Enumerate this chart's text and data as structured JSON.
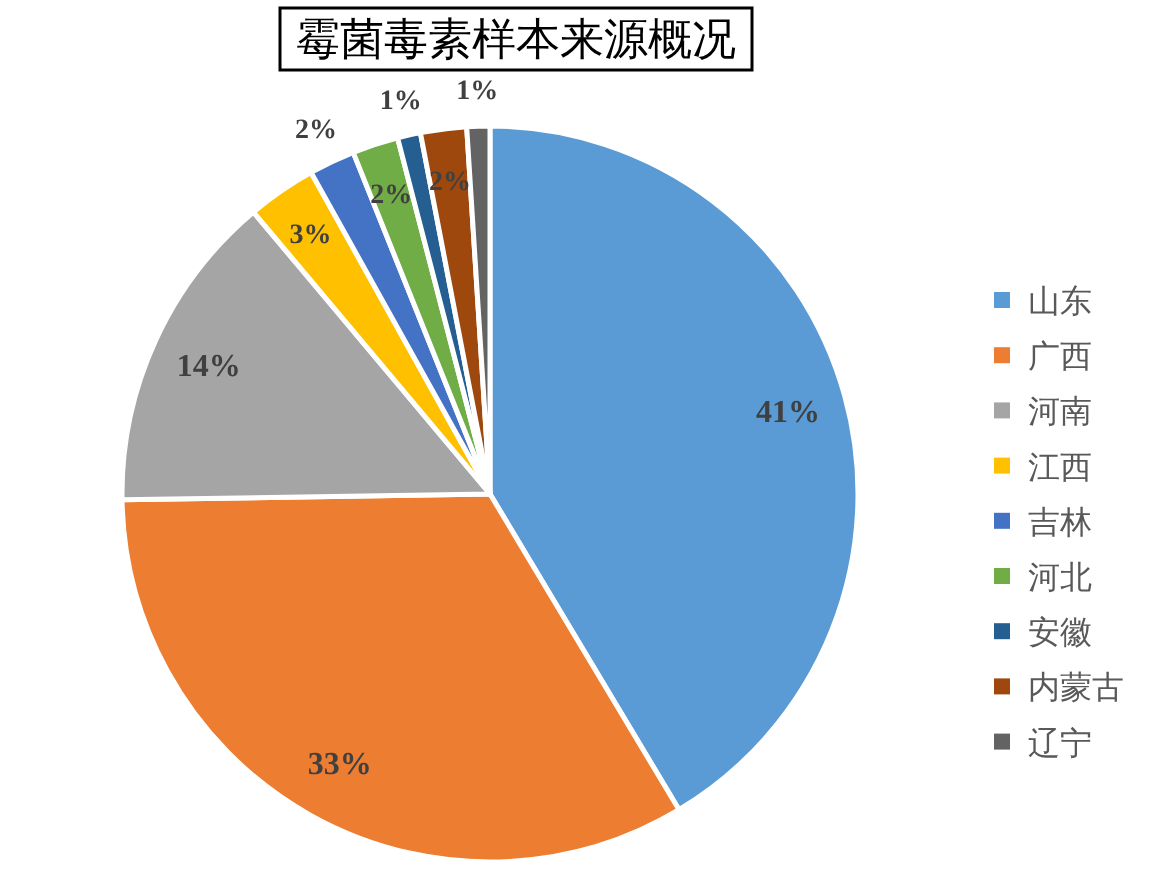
{
  "chart_data": {
    "type": "pie",
    "title": "霉菌毒素样本来源概况",
    "categories": [
      "山东",
      "广西",
      "河南",
      "江西",
      "吉林",
      "河北",
      "安徽",
      "内蒙古",
      "辽宁"
    ],
    "values": [
      41,
      33,
      14,
      3,
      2,
      2,
      1,
      2,
      1
    ],
    "value_labels": [
      "41%",
      "33%",
      "14%",
      "3%",
      "2%",
      "2%",
      "1%",
      "2%",
      "1%"
    ],
    "colors": [
      "#5b9bd5",
      "#ed7d31",
      "#a5a5a5",
      "#ffc000",
      "#4472c4",
      "#70ad47",
      "#255e91",
      "#9e480e",
      "#636363"
    ],
    "legend": "right"
  }
}
